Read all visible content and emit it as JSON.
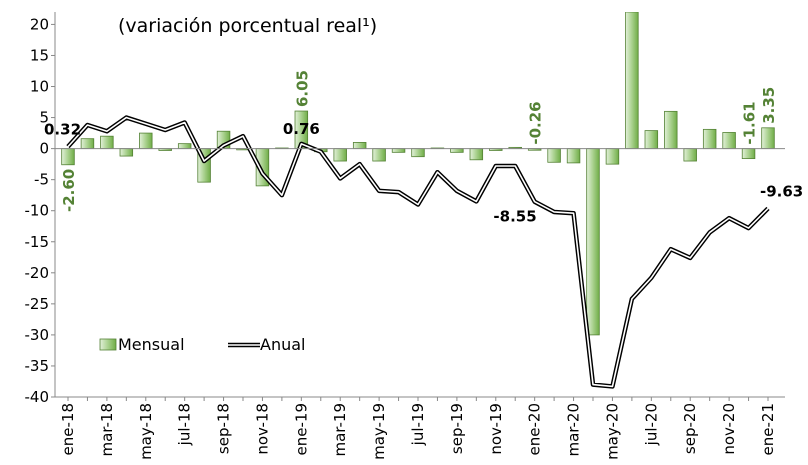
{
  "chart_data": {
    "type": "bar-line",
    "subtitle": "(variación porcentual real¹)",
    "categories": [
      "ene-18",
      null,
      "mar-18",
      null,
      "may-18",
      null,
      "jul-18",
      null,
      "sep-18",
      null,
      "nov-18",
      null,
      "ene-19",
      null,
      "mar-19",
      null,
      "may-19",
      null,
      "jul-19",
      null,
      "sep-19",
      null,
      "nov-19",
      null,
      "ene-20",
      null,
      "mar-20",
      null,
      "may-20",
      null,
      "jul-20",
      null,
      "sep-20",
      null,
      "nov-20",
      null,
      "ene-21"
    ],
    "series": [
      {
        "name": "Mensual",
        "type": "bar",
        "color": "#a9d18e",
        "values": [
          -2.6,
          1.6,
          2.0,
          -1.2,
          2.5,
          -0.3,
          0.8,
          -5.4,
          2.8,
          -0.2,
          -6.0,
          0.1,
          6.05,
          -0.5,
          -2.0,
          1.0,
          -2.0,
          -0.6,
          -1.3,
          0.1,
          -0.6,
          -1.8,
          -0.3,
          0.2,
          -0.26,
          -2.2,
          -2.3,
          -30.0,
          -2.5,
          22.0,
          2.9,
          6.0,
          -2.0,
          3.1,
          2.6,
          -1.61,
          3.35
        ],
        "value_labels": [
          "-2.60",
          null,
          null,
          null,
          null,
          null,
          null,
          null,
          null,
          null,
          null,
          null,
          "6.05",
          null,
          null,
          null,
          null,
          null,
          null,
          null,
          null,
          null,
          null,
          null,
          "-0.26",
          null,
          null,
          null,
          null,
          null,
          null,
          null,
          null,
          null,
          null,
          "-1.61",
          "3.35"
        ]
      },
      {
        "name": "Anual",
        "type": "line",
        "color": "#000000",
        "values": [
          0.32,
          3.8,
          2.8,
          5.0,
          4.0,
          3.0,
          4.2,
          -2.0,
          0.5,
          2.0,
          -4.0,
          -7.5,
          0.76,
          -0.5,
          -4.8,
          -2.5,
          -6.8,
          -7.0,
          -9.0,
          -3.8,
          -6.8,
          -8.5,
          -2.8,
          -2.8,
          -8.55,
          -10.2,
          -10.4,
          -38.0,
          -38.3,
          -24.2,
          -20.8,
          -16.2,
          -17.6,
          -13.5,
          -11.2,
          -12.8,
          -9.63
        ],
        "value_labels": [
          0.32,
          null,
          null,
          null,
          null,
          null,
          null,
          null,
          null,
          null,
          null,
          null,
          0.76,
          null,
          null,
          null,
          null,
          null,
          null,
          null,
          null,
          null,
          null,
          null,
          -8.55,
          null,
          null,
          null,
          null,
          null,
          null,
          null,
          null,
          null,
          null,
          null,
          -9.63
        ]
      }
    ],
    "ylim": [
      -40,
      22
    ],
    "yticks": [
      -40,
      -35,
      -30,
      -25,
      -20,
      -15,
      -10,
      -5,
      0,
      5,
      10,
      15,
      20
    ],
    "legend": "lower-left"
  }
}
